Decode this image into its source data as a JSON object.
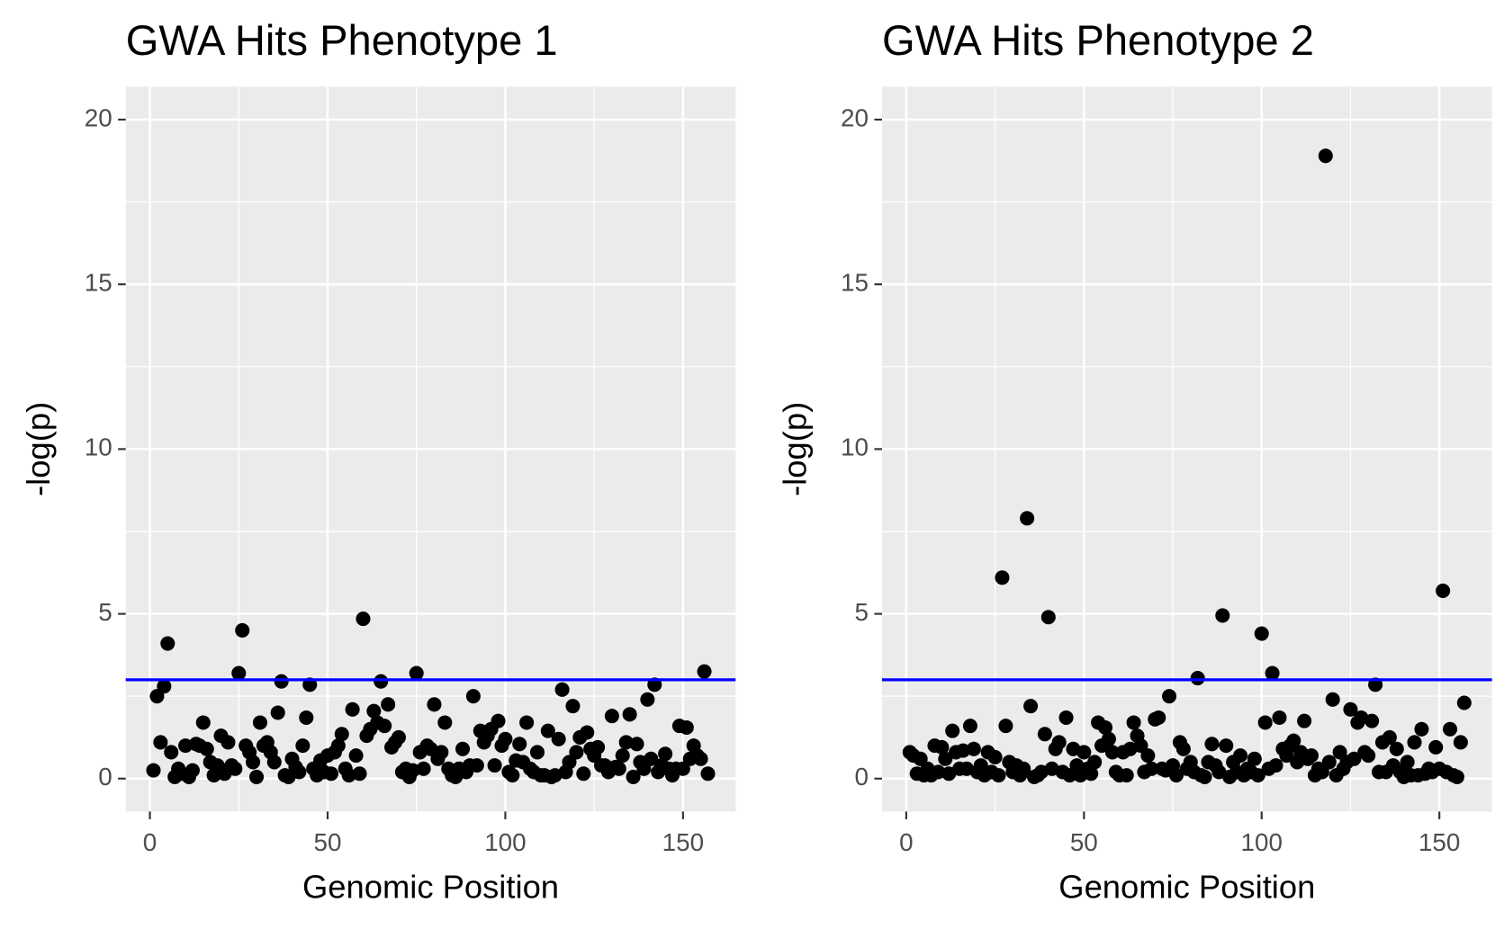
{
  "chart_data": [
    {
      "type": "scatter",
      "title": "GWA Hits Phenotype 1",
      "xlabel": "Genomic Position",
      "ylabel": "-log(p)",
      "x": [
        1,
        2,
        3,
        4,
        5,
        6,
        7,
        8,
        9,
        10,
        11,
        12,
        13,
        14,
        15,
        16,
        17,
        18,
        19,
        20,
        21,
        22,
        23,
        24,
        25,
        26,
        27,
        28,
        29,
        30,
        31,
        32,
        33,
        34,
        35,
        36,
        37,
        38,
        39,
        40,
        41,
        42,
        43,
        44,
        45,
        46,
        47,
        48,
        49,
        50,
        51,
        52,
        53,
        54,
        55,
        56,
        57,
        58,
        59,
        60,
        61,
        62,
        63,
        64,
        65,
        66,
        67,
        68,
        69,
        70,
        71,
        72,
        73,
        74,
        75,
        76,
        77,
        78,
        79,
        80,
        81,
        82,
        83,
        84,
        85,
        86,
        87,
        88,
        89,
        90,
        91,
        92,
        93,
        94,
        95,
        96,
        97,
        98,
        99,
        100,
        101,
        102,
        103,
        104,
        105,
        106,
        107,
        108,
        109,
        110,
        111,
        112,
        113,
        114,
        115,
        116,
        117,
        118,
        119,
        120,
        121,
        122,
        123,
        124,
        125,
        126,
        127,
        128,
        129,
        130,
        131,
        132,
        133,
        134,
        135,
        136,
        137,
        138,
        139,
        140,
        141,
        142,
        143,
        144,
        145,
        146,
        147,
        148,
        149,
        150,
        151,
        152,
        153,
        154,
        155,
        156,
        157
      ],
      "values": [
        0.25,
        2.5,
        1.1,
        2.8,
        4.1,
        0.8,
        0.05,
        0.3,
        0.15,
        1.0,
        0.05,
        0.25,
        1.05,
        1.0,
        1.7,
        0.9,
        0.5,
        0.1,
        0.4,
        1.3,
        0.15,
        1.1,
        0.4,
        0.3,
        3.2,
        4.5,
        1.0,
        0.8,
        0.5,
        0.05,
        1.7,
        1.0,
        1.1,
        0.8,
        0.5,
        2.0,
        2.95,
        0.1,
        0.05,
        0.6,
        0.35,
        0.2,
        1.0,
        1.85,
        2.85,
        0.3,
        0.1,
        0.55,
        0.2,
        0.7,
        0.15,
        0.8,
        1.0,
        1.35,
        0.3,
        0.1,
        2.1,
        0.7,
        0.15,
        4.85,
        1.3,
        1.5,
        2.05,
        1.7,
        2.95,
        1.6,
        2.25,
        0.95,
        1.1,
        1.25,
        0.2,
        0.3,
        0.05,
        0.25,
        3.2,
        0.8,
        0.3,
        1.0,
        0.9,
        2.25,
        0.6,
        0.8,
        1.7,
        0.3,
        0.1,
        0.05,
        0.3,
        0.9,
        0.2,
        0.4,
        2.5,
        0.4,
        1.45,
        1.1,
        1.3,
        1.5,
        0.4,
        1.75,
        1.0,
        1.2,
        0.2,
        0.1,
        0.55,
        1.05,
        0.5,
        1.7,
        0.3,
        0.2,
        0.8,
        0.1,
        0.1,
        1.45,
        0.05,
        0.1,
        1.2,
        2.7,
        0.2,
        0.5,
        2.2,
        0.8,
        1.25,
        0.15,
        1.4,
        0.9,
        0.7,
        0.95,
        0.4,
        0.4,
        0.2,
        1.9,
        0.35,
        0.3,
        0.7,
        1.1,
        1.95,
        0.05,
        1.05,
        0.5,
        0.3,
        2.4,
        0.6,
        2.85,
        0.2,
        0.4,
        0.75,
        0.3,
        0.1,
        0.3,
        1.6,
        0.3,
        1.55,
        0.6,
        1.0,
        0.7,
        0.6,
        3.25,
        0.15
      ],
      "color": "#000000",
      "hline": 3,
      "hline_color": "#0000ff",
      "xlim": [
        -6.8,
        164.8
      ],
      "xticks": [
        0,
        50,
        100,
        150
      ],
      "ylim": [
        -1,
        21
      ],
      "yticks": [
        0,
        5,
        10,
        15,
        20
      ],
      "grid": true
    },
    {
      "type": "scatter",
      "title": "GWA Hits Phenotype 2",
      "xlabel": "Genomic Position",
      "ylabel": "-log(p)",
      "x": [
        1,
        2,
        3,
        4,
        5,
        6,
        7,
        8,
        9,
        10,
        11,
        12,
        13,
        14,
        15,
        16,
        17,
        18,
        19,
        20,
        21,
        22,
        23,
        24,
        25,
        26,
        27,
        28,
        29,
        30,
        31,
        32,
        33,
        34,
        35,
        36,
        37,
        38,
        39,
        40,
        41,
        42,
        43,
        44,
        45,
        46,
        47,
        48,
        49,
        50,
        51,
        52,
        53,
        54,
        55,
        56,
        57,
        58,
        59,
        60,
        61,
        62,
        63,
        64,
        65,
        66,
        67,
        68,
        69,
        70,
        71,
        72,
        73,
        74,
        75,
        76,
        77,
        78,
        79,
        80,
        81,
        82,
        83,
        84,
        85,
        86,
        87,
        88,
        89,
        90,
        91,
        92,
        93,
        94,
        95,
        96,
        97,
        98,
        99,
        100,
        101,
        102,
        103,
        104,
        105,
        106,
        107,
        108,
        109,
        110,
        111,
        112,
        113,
        114,
        115,
        116,
        117,
        118,
        119,
        120,
        121,
        122,
        123,
        124,
        125,
        126,
        127,
        128,
        129,
        130,
        131,
        132,
        133,
        134,
        135,
        136,
        137,
        138,
        139,
        140,
        141,
        142,
        143,
        144,
        145,
        146,
        147,
        148,
        149,
        150,
        151,
        152,
        153,
        154,
        155,
        156,
        157
      ],
      "values": [
        0.8,
        0.7,
        0.15,
        0.6,
        0.1,
        0.3,
        0.1,
        1.0,
        0.2,
        0.95,
        0.6,
        0.15,
        1.45,
        0.8,
        0.3,
        0.85,
        0.3,
        1.6,
        0.9,
        0.2,
        0.4,
        0.1,
        0.8,
        0.2,
        0.65,
        0.1,
        6.1,
        1.6,
        0.5,
        0.2,
        0.4,
        0.1,
        0.3,
        7.9,
        2.2,
        0.05,
        0.1,
        0.2,
        1.35,
        4.9,
        0.3,
        0.9,
        1.1,
        0.2,
        1.85,
        0.1,
        0.9,
        0.4,
        0.1,
        0.8,
        0.3,
        0.15,
        0.5,
        1.7,
        1.0,
        1.55,
        1.2,
        0.8,
        0.2,
        0.1,
        0.8,
        0.1,
        0.9,
        1.7,
        1.3,
        1.0,
        0.2,
        0.7,
        0.3,
        1.8,
        1.85,
        0.3,
        0.25,
        2.5,
        0.4,
        0.1,
        1.1,
        0.9,
        0.3,
        0.5,
        0.2,
        3.05,
        0.1,
        0.05,
        0.5,
        1.05,
        0.4,
        0.2,
        4.95,
        1.0,
        0.05,
        0.5,
        0.2,
        0.7,
        0.1,
        0.3,
        0.2,
        0.6,
        0.1,
        4.4,
        1.7,
        0.3,
        3.2,
        0.4,
        1.85,
        0.9,
        0.7,
        1.0,
        1.15,
        0.5,
        0.8,
        1.75,
        0.6,
        0.7,
        0.1,
        0.3,
        0.2,
        18.9,
        0.5,
        2.4,
        0.1,
        0.8,
        0.3,
        0.5,
        2.1,
        0.6,
        1.7,
        1.85,
        0.8,
        0.7,
        1.75,
        2.85,
        0.2,
        1.1,
        0.2,
        1.25,
        0.4,
        0.9,
        0.2,
        0.05,
        0.5,
        0.1,
        1.1,
        0.1,
        1.5,
        0.15,
        0.3,
        0.2,
        0.95,
        0.3,
        5.7,
        0.2,
        1.5,
        0.1,
        0.05,
        1.1,
        2.3
      ],
      "color": "#000000",
      "hline": 3,
      "hline_color": "#0000ff",
      "xlim": [
        -6.8,
        164.8
      ],
      "xticks": [
        0,
        50,
        100,
        150
      ],
      "ylim": [
        -1,
        21
      ],
      "yticks": [
        0,
        5,
        10,
        15,
        20
      ],
      "grid": true
    }
  ]
}
